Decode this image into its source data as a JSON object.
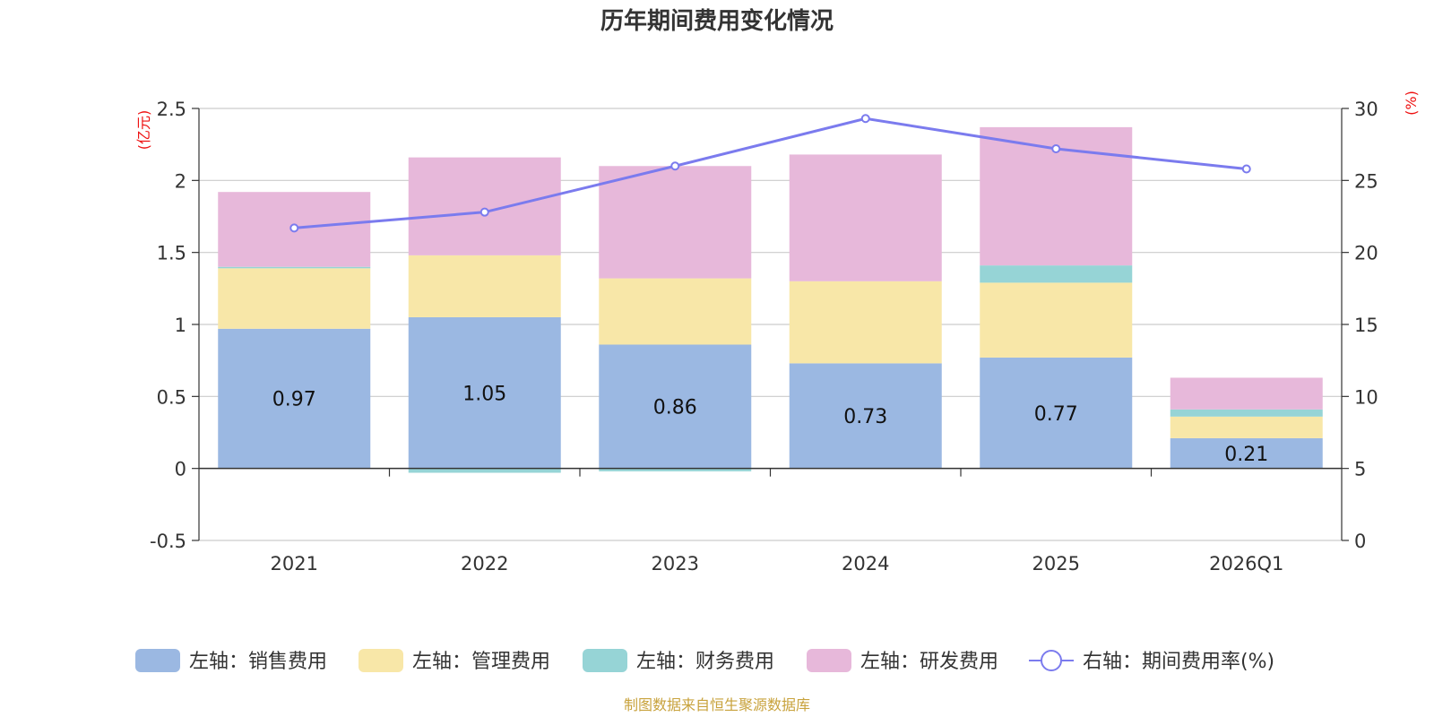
{
  "chart_data": {
    "type": "bar",
    "title": "历年期间费用变化情况",
    "categories": [
      "2021",
      "2022",
      "2023",
      "2024",
      "2025",
      "2026Q1"
    ],
    "stacked": true,
    "left_axis": {
      "unit": "(亿元)",
      "ylim": [
        -0.5,
        2.5
      ],
      "ticks": [
        -0.5,
        0,
        0.5,
        1,
        1.5,
        2,
        2.5
      ],
      "tick_labels": [
        "-0.5",
        "0",
        "0.5",
        "1",
        "1.5",
        "2",
        "2.5"
      ]
    },
    "right_axis": {
      "unit": "(%)",
      "ylim": [
        0,
        30
      ],
      "ticks": [
        0,
        5,
        10,
        15,
        20,
        25,
        30
      ],
      "tick_labels": [
        "0",
        "5",
        "10",
        "15",
        "20",
        "25",
        "30"
      ]
    },
    "series": [
      {
        "name": "左轴：销售费用",
        "axis": "left",
        "color": "#9bb8e2",
        "values": [
          0.97,
          1.05,
          0.86,
          0.73,
          0.77,
          0.21
        ],
        "labels": [
          "0.97",
          "1.05",
          "0.86",
          "0.73",
          "0.77",
          "0.21"
        ]
      },
      {
        "name": "左轴：管理费用",
        "axis": "left",
        "color": "#f8e7a8",
        "values": [
          0.42,
          0.43,
          0.46,
          0.57,
          0.52,
          0.15
        ]
      },
      {
        "name": "左轴：财务费用",
        "axis": "left",
        "color": "#96d4d6",
        "values": [
          0.01,
          -0.03,
          -0.02,
          0.0,
          0.12,
          0.05
        ]
      },
      {
        "name": "左轴：研发费用",
        "axis": "left",
        "color": "#e7b8da",
        "values": [
          0.52,
          0.68,
          0.78,
          0.88,
          0.96,
          0.22
        ]
      },
      {
        "name": "右轴：期间费用率(%)",
        "axis": "right",
        "type": "line",
        "color": "#7b7bee",
        "values": [
          21.7,
          22.8,
          26.0,
          29.3,
          27.2,
          25.8
        ]
      }
    ],
    "source": "制图数据来自恒生聚源数据库"
  }
}
